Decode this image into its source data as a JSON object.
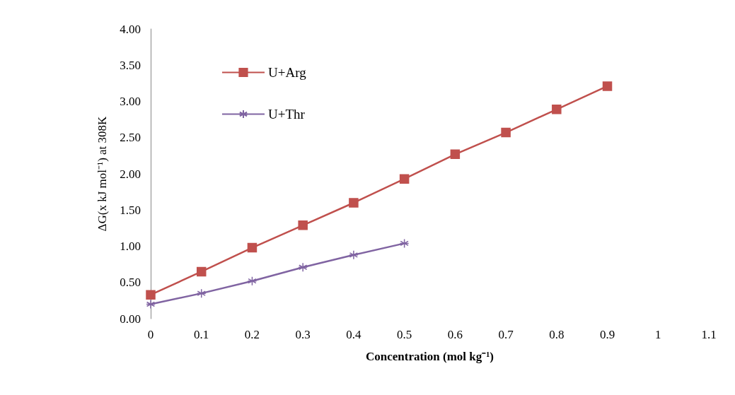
{
  "chart_data": {
    "type": "line",
    "xlabel": "Concentration (mol kg⁻¹)",
    "ylabel": "ΔG(x kJ mol⁻¹) at 308K",
    "series": [
      {
        "name": "U+Arg",
        "color": "#c0504d",
        "marker": "square",
        "x": [
          0,
          0.1,
          0.2,
          0.3,
          0.4,
          0.5,
          0.6,
          0.7,
          0.8,
          0.9
        ],
        "values": [
          0.33,
          0.65,
          0.98,
          1.29,
          1.6,
          1.93,
          2.27,
          2.57,
          2.89,
          3.21
        ]
      },
      {
        "name": "U+Thr",
        "color": "#8064a2",
        "marker": "cross",
        "x": [
          0,
          0.1,
          0.2,
          0.3,
          0.4,
          0.5
        ],
        "values": [
          0.2,
          0.35,
          0.52,
          0.71,
          0.88,
          1.04
        ]
      }
    ],
    "xlim": [
      0,
      1.1
    ],
    "xticks": [
      0,
      0.1,
      0.2,
      0.3,
      0.4,
      0.5,
      0.6,
      0.7,
      0.8,
      0.9,
      1,
      1.1
    ],
    "ylim": [
      0,
      4
    ],
    "yticks": [
      {
        "value": 0,
        "label": "0.00"
      },
      {
        "value": 0.5,
        "label": "0.50"
      },
      {
        "value": 1,
        "label": "1.00"
      },
      {
        "value": 1.5,
        "label": "1.50"
      },
      {
        "value": 2,
        "label": "2.00"
      },
      {
        "value": 2.5,
        "label": "2.50"
      },
      {
        "value": 3,
        "label": "3.00"
      },
      {
        "value": 3.5,
        "label": "3.50"
      },
      {
        "value": 4,
        "label": "4.00"
      }
    ],
    "grid": false,
    "legend": "top left",
    "line_style": "solid"
  }
}
